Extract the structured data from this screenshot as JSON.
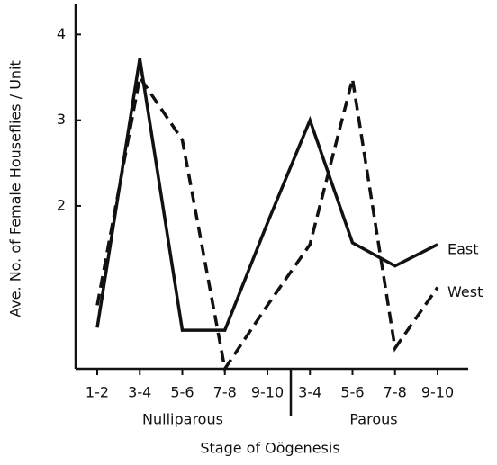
{
  "chart_data": {
    "type": "line",
    "ylabel": "Ave. No. of Female Houseflies / Unit",
    "xlabel": "Stage of Oögenesis",
    "groups": [
      "Nulliparous",
      "Parous"
    ],
    "categories": [
      "1-2",
      "3-4",
      "5-6",
      "7-8",
      "9-10",
      "3-4",
      "5-6",
      "7-8",
      "9-10"
    ],
    "series": [
      {
        "name": "East",
        "color": "#111111",
        "dash": "solid",
        "values": [
          0.58,
          3.72,
          0.55,
          0.55,
          1.8,
          3.0,
          1.57,
          1.3,
          1.55
        ]
      },
      {
        "name": "West",
        "color": "#111111",
        "dash": "dashed",
        "values": [
          0.84,
          3.5,
          2.77,
          0.1,
          0.84,
          1.55,
          3.48,
          0.34,
          1.05
        ]
      }
    ],
    "ylim": [
      0.1,
      4.35
    ],
    "yticks": [
      2,
      3,
      4
    ],
    "grid": false
  }
}
